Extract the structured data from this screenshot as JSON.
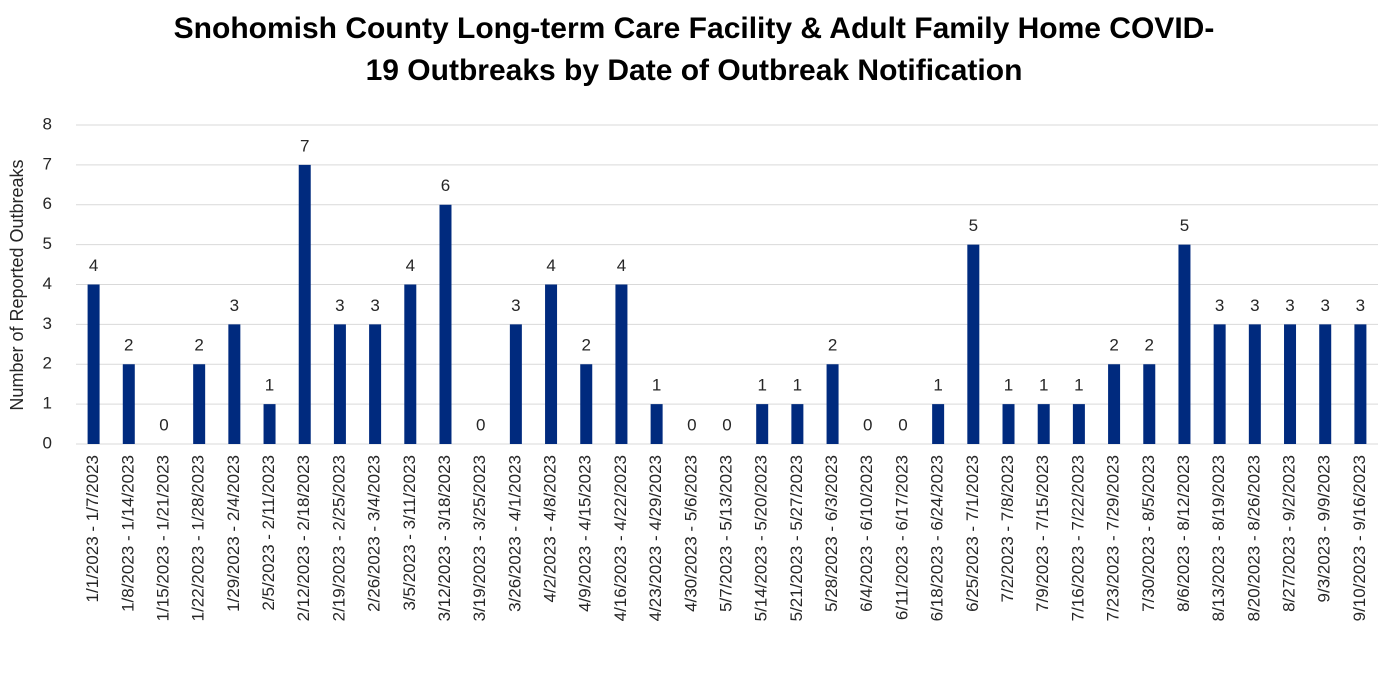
{
  "chart_data": {
    "type": "bar",
    "title": [
      "Snohomish County Long-term Care Facility & Adult Family Home COVID-",
      "19 Outbreaks by Date of Outbreak Notification"
    ],
    "y_label": "Number of Reported Outbreaks",
    "categories": [
      "1/1/2023 - 1/7/2023",
      "1/8/2023 - 1/14/2023",
      "1/15/2023 - 1/21/2023",
      "1/22/2023 - 1/28/2023",
      "1/29/2023 - 2/4/2023",
      "2/5/2023 - 2/11/2023",
      "2/12/2023 - 2/18/2023",
      "2/19/2023 - 2/25/2023",
      "2/26/2023 - 3/4/2023",
      "3/5/2023 - 3/11/2023",
      "3/12/2023 - 3/18/2023",
      "3/19/2023 - 3/25/2023",
      "3/26/2023 - 4/1/2023",
      "4/2/2023 - 4/8/2023",
      "4/9/2023 - 4/15/2023",
      "4/16/2023 - 4/22/2023",
      "4/23/2023 - 4/29/2023",
      "4/30/2023 - 5/6/2023",
      "5/7/2023 - 5/13/2023",
      "5/14/2023 - 5/20/2023",
      "5/21/2023 - 5/27/2023",
      "5/28/2023 - 6/3/2023",
      "6/4/2023 - 6/10/2023",
      "6/11/2023 - 6/17/2023",
      "6/18/2023 - 6/24/2023",
      "6/25/2023 - 7/1/2023",
      "7/2/2023 - 7/8/2023",
      "7/9/2023 - 7/15/2023",
      "7/16/2023 - 7/22/2023",
      "7/23/2023 - 7/29/2023",
      "7/30/2023 - 8/5/2023",
      "8/6/2023 - 8/12/2023",
      "8/13/2023 - 8/19/2023",
      "8/20/2023 - 8/26/2023",
      "8/27/2023 - 9/2/2023",
      "9/3/2023 - 9/9/2023",
      "9/10/2023 - 9/16/2023"
    ],
    "values": [
      4,
      2,
      0,
      2,
      3,
      1,
      7,
      3,
      3,
      4,
      6,
      0,
      3,
      4,
      2,
      4,
      1,
      0,
      0,
      1,
      1,
      2,
      0,
      0,
      1,
      5,
      1,
      1,
      1,
      2,
      2,
      5,
      3,
      3,
      3,
      3,
      3
    ],
    "color": "#002a7e",
    "ylim": [
      0,
      8
    ],
    "yticks": [
      0,
      1,
      2,
      3,
      4,
      5,
      6,
      7,
      8
    ],
    "grid": true
  }
}
